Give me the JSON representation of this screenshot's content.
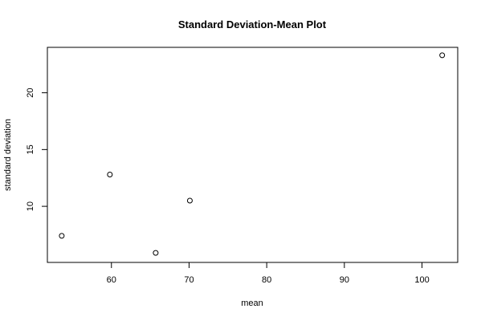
{
  "chart_data": {
    "type": "scatter",
    "title": "Standard Deviation-Mean Plot",
    "xlabel": "mean",
    "ylabel": "standard deviation",
    "x_ticks": [
      60,
      70,
      80,
      90,
      100
    ],
    "y_ticks": [
      10,
      15,
      20
    ],
    "xlim": [
      51.75,
      104.6
    ],
    "ylim": [
      5.06,
      24.0
    ],
    "points": [
      {
        "x": 53.6,
        "y": 7.4
      },
      {
        "x": 59.8,
        "y": 12.8
      },
      {
        "x": 65.7,
        "y": 5.9
      },
      {
        "x": 70.1,
        "y": 10.5
      },
      {
        "x": 102.6,
        "y": 23.3
      }
    ],
    "grid": false,
    "marker": "open-circle",
    "color": "#000000"
  }
}
